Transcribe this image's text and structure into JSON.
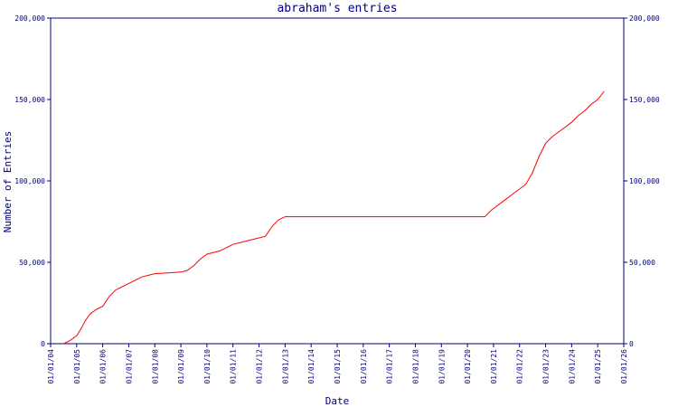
{
  "chart_data": {
    "type": "line",
    "title": "abraham's entries",
    "xlabel": "Date",
    "ylabel": "Number of Entries",
    "ylim": [
      0,
      200000
    ],
    "xlim": [
      "2004-01-01",
      "2026-01-01"
    ],
    "y_ticks": [
      0,
      50000,
      100000,
      150000,
      200000
    ],
    "y_tick_labels": [
      "0",
      "50,000",
      "100,000",
      "150,000",
      "200,000"
    ],
    "x_tick_labels": [
      "01/01/04",
      "01/01/05",
      "01/01/06",
      "01/01/07",
      "01/01/08",
      "01/01/09",
      "01/01/10",
      "01/01/11",
      "01/01/12",
      "01/01/13",
      "01/01/14",
      "01/01/15",
      "01/01/16",
      "01/01/17",
      "01/01/18",
      "01/01/19",
      "01/01/20",
      "01/01/21",
      "01/01/22",
      "01/01/23",
      "01/01/24",
      "01/01/25",
      "01/01/26"
    ],
    "grid": false,
    "legend": "none",
    "colors": {
      "axes": "#000080",
      "line": "#ff0000",
      "background": "#ffffff"
    },
    "series": [
      {
        "x": [
          "2004-07-01",
          "2004-10-01",
          "2005-01-01",
          "2005-03-01",
          "2005-05-01",
          "2005-07-01",
          "2005-10-01",
          "2006-01-01",
          "2006-04-01",
          "2006-07-01",
          "2006-10-01",
          "2007-01-01",
          "2007-04-01",
          "2007-07-01",
          "2007-10-01",
          "2008-01-01",
          "2008-07-01",
          "2009-01-01",
          "2009-04-01",
          "2009-07-01",
          "2009-10-01",
          "2010-01-01",
          "2010-07-01",
          "2011-01-01",
          "2011-07-01",
          "2012-01-01",
          "2012-04-01",
          "2012-07-01",
          "2012-10-01",
          "2013-01-01",
          "2014-01-01",
          "2015-01-01",
          "2016-01-01",
          "2017-01-01",
          "2018-01-01",
          "2019-01-01",
          "2020-01-01",
          "2020-09-01",
          "2020-12-01",
          "2021-04-01",
          "2021-07-01",
          "2021-10-01",
          "2022-01-01",
          "2022-04-01",
          "2022-07-01",
          "2022-10-01",
          "2023-01-01",
          "2023-04-01",
          "2023-07-01",
          "2023-10-01",
          "2024-01-01",
          "2024-04-01",
          "2024-07-01",
          "2024-10-01",
          "2025-01-01",
          "2025-04-01"
        ],
        "y": [
          0,
          2000,
          5000,
          9000,
          14000,
          18000,
          21000,
          23000,
          29000,
          33000,
          35000,
          37000,
          39000,
          41000,
          42000,
          43000,
          43500,
          44000,
          45000,
          48000,
          52000,
          55000,
          57000,
          61000,
          63000,
          65000,
          66000,
          72000,
          76000,
          78000,
          78000,
          78000,
          78000,
          78000,
          78000,
          78000,
          78000,
          78000,
          82000,
          86000,
          89000,
          92000,
          95000,
          98000,
          105000,
          115000,
          123000,
          127000,
          130000,
          133000,
          136000,
          140000,
          143000,
          147000,
          150000,
          155000
        ]
      }
    ]
  }
}
